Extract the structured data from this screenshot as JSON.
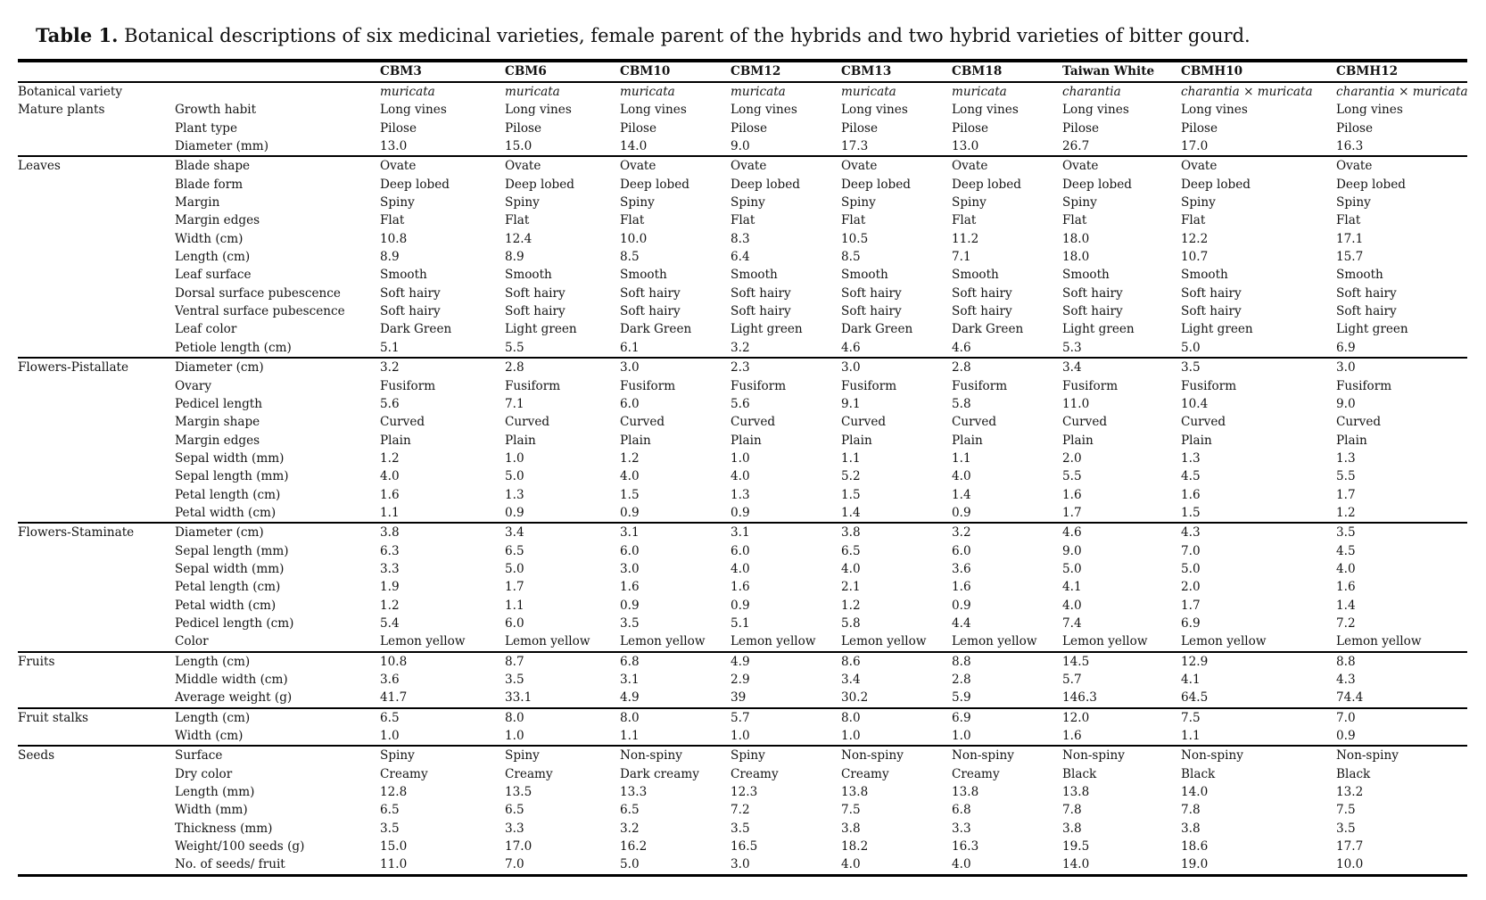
{
  "title": {
    "label": "Table 1.",
    "text": "Botanical descriptions of six medicinal varieties, female parent of the hybrids and two hybrid varieties of bitter gourd."
  },
  "table": {
    "columns": [
      "CBM3",
      "CBM6",
      "CBM10",
      "CBM12",
      "CBM13",
      "CBM18",
      "Taiwan White",
      "CBMH10",
      "CBMH12"
    ],
    "sections": [
      {
        "group": "Botanical variety",
        "divider_above": false,
        "rows": [
          {
            "label": "",
            "italic": true,
            "values": [
              "muricata",
              "muricata",
              "muricata",
              "muricata",
              "muricata",
              "muricata",
              "charantia",
              "charantia × muricata",
              "charantia × muricata"
            ]
          }
        ]
      },
      {
        "group": "Mature plants",
        "divider_above": false,
        "rows": [
          {
            "label": "Growth habit",
            "values": [
              "Long vines",
              "Long vines",
              "Long vines",
              "Long vines",
              "Long vines",
              "Long vines",
              "Long vines",
              "Long vines",
              "Long vines"
            ]
          },
          {
            "label": "Plant type",
            "values": [
              "Pilose",
              "Pilose",
              "Pilose",
              "Pilose",
              "Pilose",
              "Pilose",
              "Pilose",
              "Pilose",
              "Pilose"
            ]
          },
          {
            "label": "Diameter (mm)",
            "values": [
              "13.0",
              "15.0",
              "14.0",
              "9.0",
              "17.3",
              "13.0",
              "26.7",
              "17.0",
              "16.3"
            ]
          }
        ]
      },
      {
        "group": "Leaves",
        "divider_above": true,
        "rows": [
          {
            "label": "Blade shape",
            "values": [
              "Ovate",
              "Ovate",
              "Ovate",
              "Ovate",
              "Ovate",
              "Ovate",
              "Ovate",
              "Ovate",
              "Ovate"
            ]
          },
          {
            "label": "Blade form",
            "values": [
              "Deep lobed",
              "Deep lobed",
              "Deep lobed",
              "Deep lobed",
              "Deep lobed",
              "Deep lobed",
              "Deep lobed",
              "Deep lobed",
              "Deep lobed"
            ]
          },
          {
            "label": "Margin",
            "values": [
              "Spiny",
              "Spiny",
              "Spiny",
              "Spiny",
              "Spiny",
              "Spiny",
              "Spiny",
              "Spiny",
              "Spiny"
            ]
          },
          {
            "label": "Margin edges",
            "values": [
              "Flat",
              "Flat",
              "Flat",
              "Flat",
              "Flat",
              "Flat",
              "Flat",
              "Flat",
              "Flat"
            ]
          },
          {
            "label": "Width (cm)",
            "values": [
              "10.8",
              "12.4",
              "10.0",
              "8.3",
              "10.5",
              "11.2",
              "18.0",
              "12.2",
              "17.1"
            ]
          },
          {
            "label": "Length (cm)",
            "values": [
              "8.9",
              "8.9",
              "8.5",
              "6.4",
              "8.5",
              "7.1",
              "18.0",
              "10.7",
              "15.7"
            ]
          },
          {
            "label": "Leaf surface",
            "values": [
              "Smooth",
              "Smooth",
              "Smooth",
              "Smooth",
              "Smooth",
              "Smooth",
              "Smooth",
              "Smooth",
              "Smooth"
            ]
          },
          {
            "label": "Dorsal surface pubescence",
            "values": [
              "Soft hairy",
              "Soft hairy",
              "Soft hairy",
              "Soft hairy",
              "Soft hairy",
              "Soft hairy",
              "Soft hairy",
              "Soft hairy",
              "Soft hairy"
            ]
          },
          {
            "label": "Ventral surface pubescence",
            "values": [
              "Soft hairy",
              "Soft hairy",
              "Soft hairy",
              "Soft hairy",
              "Soft hairy",
              "Soft hairy",
              "Soft hairy",
              "Soft hairy",
              "Soft hairy"
            ]
          },
          {
            "label": "Leaf color",
            "values": [
              "Dark Green",
              "Light green",
              "Dark Green",
              "Light green",
              "Dark Green",
              "Dark Green",
              "Light green",
              "Light green",
              "Light green"
            ]
          },
          {
            "label": "Petiole length (cm)",
            "values": [
              "5.1",
              "5.5",
              "6.1",
              "3.2",
              "4.6",
              "4.6",
              "5.3",
              "5.0",
              "6.9"
            ]
          }
        ]
      },
      {
        "group": "Flowers-Pistallate",
        "divider_above": true,
        "rows": [
          {
            "label": "Diameter (cm)",
            "values": [
              "3.2",
              "2.8",
              "3.0",
              "2.3",
              "3.0",
              "2.8",
              "3.4",
              "3.5",
              "3.0"
            ]
          },
          {
            "label": "Ovary",
            "values": [
              "Fusiform",
              "Fusiform",
              "Fusiform",
              "Fusiform",
              "Fusiform",
              "Fusiform",
              "Fusiform",
              "Fusiform",
              "Fusiform"
            ]
          },
          {
            "label": "Pedicel length",
            "values": [
              "5.6",
              "7.1",
              "6.0",
              "5.6",
              "9.1",
              "5.8",
              "11.0",
              "10.4",
              "9.0"
            ]
          },
          {
            "label": "Margin shape",
            "values": [
              "Curved",
              "Curved",
              "Curved",
              "Curved",
              "Curved",
              "Curved",
              "Curved",
              "Curved",
              "Curved"
            ]
          },
          {
            "label": "Margin edges",
            "values": [
              "Plain",
              "Plain",
              "Plain",
              "Plain",
              "Plain",
              "Plain",
              "Plain",
              "Plain",
              "Plain"
            ]
          },
          {
            "label": "Sepal width (mm)",
            "values": [
              "1.2",
              "1.0",
              "1.2",
              "1.0",
              "1.1",
              "1.1",
              "2.0",
              "1.3",
              "1.3"
            ]
          },
          {
            "label": "Sepal length (mm)",
            "values": [
              "4.0",
              "5.0",
              "4.0",
              "4.0",
              "5.2",
              "4.0",
              "5.5",
              "4.5",
              "5.5"
            ]
          },
          {
            "label": "Petal length (cm)",
            "values": [
              "1.6",
              "1.3",
              "1.5",
              "1.3",
              "1.5",
              "1.4",
              "1.6",
              "1.6",
              "1.7"
            ]
          },
          {
            "label": "Petal width (cm)",
            "values": [
              "1.1",
              "0.9",
              "0.9",
              "0.9",
              "1.4",
              "0.9",
              "1.7",
              "1.5",
              "1.2"
            ]
          }
        ]
      },
      {
        "group": "Flowers-Staminate",
        "divider_above": true,
        "rows": [
          {
            "label": "Diameter (cm)",
            "values": [
              "3.8",
              "3.4",
              "3.1",
              "3.1",
              "3.8",
              "3.2",
              "4.6",
              "4.3",
              "3.5"
            ]
          },
          {
            "label": "Sepal length (mm)",
            "values": [
              "6.3",
              "6.5",
              "6.0",
              "6.0",
              "6.5",
              "6.0",
              "9.0",
              "7.0",
              "4.5"
            ]
          },
          {
            "label": "Sepal width (mm)",
            "values": [
              "3.3",
              "5.0",
              "3.0",
              "4.0",
              "4.0",
              "3.6",
              "5.0",
              "5.0",
              "4.0"
            ]
          },
          {
            "label": "Petal length (cm)",
            "values": [
              "1.9",
              "1.7",
              "1.6",
              "1.6",
              "2.1",
              "1.6",
              "4.1",
              "2.0",
              "1.6"
            ]
          },
          {
            "label": "Petal width (cm)",
            "values": [
              "1.2",
              "1.1",
              "0.9",
              "0.9",
              "1.2",
              "0.9",
              "4.0",
              "1.7",
              "1.4"
            ]
          },
          {
            "label": "Pedicel length (cm)",
            "values": [
              "5.4",
              "6.0",
              "3.5",
              "5.1",
              "5.8",
              "4.4",
              "7.4",
              "6.9",
              "7.2"
            ]
          },
          {
            "label": "Color",
            "values": [
              "Lemon yellow",
              "Lemon yellow",
              "Lemon yellow",
              "Lemon yellow",
              "Lemon yellow",
              "Lemon yellow",
              "Lemon yellow",
              "Lemon yellow",
              "Lemon yellow"
            ]
          }
        ]
      },
      {
        "group": "Fruits",
        "divider_above": true,
        "rows": [
          {
            "label": "Length (cm)",
            "values": [
              "10.8",
              "8.7",
              "6.8",
              "4.9",
              "8.6",
              "8.8",
              "14.5",
              "12.9",
              "8.8"
            ]
          },
          {
            "label": "Middle width (cm)",
            "values": [
              "3.6",
              "3.5",
              "3.1",
              "2.9",
              "3.4",
              "2.8",
              "5.7",
              "4.1",
              "4.3"
            ]
          },
          {
            "label": "Average weight (g)",
            "values": [
              "41.7",
              "33.1",
              "4.9",
              "39",
              "30.2",
              "5.9",
              "146.3",
              "64.5",
              "74.4"
            ]
          }
        ]
      },
      {
        "group": "Fruit stalks",
        "divider_above": true,
        "rows": [
          {
            "label": "Length (cm)",
            "values": [
              "6.5",
              "8.0",
              "8.0",
              "5.7",
              "8.0",
              "6.9",
              "12.0",
              "7.5",
              "7.0"
            ]
          },
          {
            "label": "Width (cm)",
            "values": [
              "1.0",
              "1.0",
              "1.1",
              "1.0",
              "1.0",
              "1.0",
              "1.6",
              "1.1",
              "0.9"
            ]
          }
        ]
      },
      {
        "group": "Seeds",
        "divider_above": true,
        "rows": [
          {
            "label": "Surface",
            "values": [
              "Spiny",
              "Spiny",
              "Non-spiny",
              "Spiny",
              "Non-spiny",
              "Non-spiny",
              "Non-spiny",
              "Non-spiny",
              "Non-spiny"
            ]
          },
          {
            "label": "Dry color",
            "values": [
              "Creamy",
              "Creamy",
              "Dark creamy",
              "Creamy",
              "Creamy",
              "Creamy",
              "Black",
              "Black",
              "Black"
            ]
          },
          {
            "label": "Length (mm)",
            "values": [
              "12.8",
              "13.5",
              "13.3",
              "12.3",
              "13.8",
              "13.8",
              "13.8",
              "14.0",
              "13.2"
            ]
          },
          {
            "label": "Width (mm)",
            "values": [
              "6.5",
              "6.5",
              "6.5",
              "7.2",
              "7.5",
              "6.8",
              "7.8",
              "7.8",
              "7.5"
            ]
          },
          {
            "label": "Thickness (mm)",
            "values": [
              "3.5",
              "3.3",
              "3.2",
              "3.5",
              "3.8",
              "3.3",
              "3.8",
              "3.8",
              "3.5"
            ]
          },
          {
            "label": "Weight/100 seeds (g)",
            "values": [
              "15.0",
              "17.0",
              "16.2",
              "16.5",
              "18.2",
              "16.3",
              "19.5",
              "18.6",
              "17.7"
            ]
          },
          {
            "label": "No. of seeds/ fruit",
            "values": [
              "11.0",
              "7.0",
              "5.0",
              "3.0",
              "4.0",
              "4.0",
              "14.0",
              "19.0",
              "10.0"
            ]
          }
        ]
      }
    ]
  }
}
